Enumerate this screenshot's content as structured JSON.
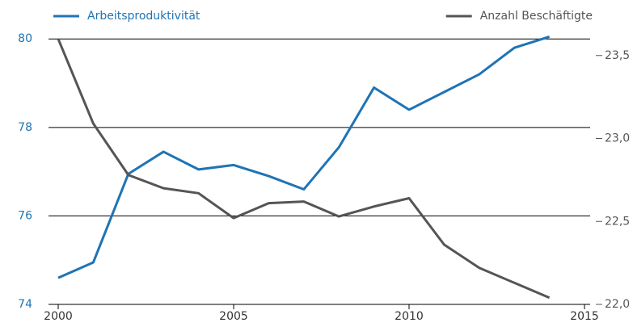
{
  "chart_data": {
    "type": "line",
    "x": [
      2000,
      2001,
      2002,
      2003,
      2004,
      2005,
      2006,
      2007,
      2008,
      2009,
      2010,
      2011,
      2012,
      2013,
      2014
    ],
    "xlim": [
      2000,
      2015
    ],
    "xticks": [
      2000,
      2005,
      2010,
      2015
    ],
    "ylim": [
      74,
      80.15
    ],
    "yticks": [
      74,
      76,
      78,
      80
    ],
    "y2lim": [
      22,
      23.64
    ],
    "y2ticks": [
      {
        "value": 22,
        "label": "22,0"
      },
      {
        "value": 22.5,
        "label": "22,5"
      },
      {
        "value": 23,
        "label": "23,0"
      },
      {
        "value": 23.5,
        "label": "23,5"
      }
    ],
    "grid": true,
    "series": [
      {
        "name": "Arbeitsproduktivität",
        "color": "#1f74b4",
        "values": [
          74.6,
          74.95,
          76.95,
          77.45,
          77.05,
          77.15,
          76.9,
          76.6,
          77.55,
          78.9,
          78.4,
          78.8,
          79.2,
          79.8,
          80.05
        ]
      },
      {
        "name": "Anzahl Beschäftigte",
        "color": "#555555",
        "axis": "y2",
        "values": [
          23.6,
          23.09,
          22.78,
          22.7,
          22.67,
          22.52,
          22.61,
          22.62,
          22.53,
          22.59,
          22.64,
          22.36,
          22.22,
          22.13,
          22.04
        ]
      }
    ]
  }
}
